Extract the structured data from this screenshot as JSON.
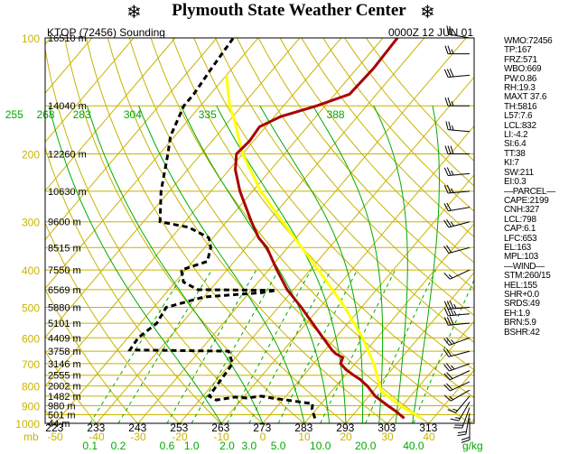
{
  "header": {
    "title": "Plymouth State Weather Center",
    "icon_left": "hurricane-icon",
    "icon_right": "hurricane-icon"
  },
  "sounding": {
    "station": "KTOP (72456) Sounding",
    "time": "0000Z 12 JUN 01"
  },
  "colors": {
    "background": "#ffffff",
    "isobars_isotherms": "#c8b400",
    "dry_adiabats": "#c8b400",
    "moist_adiabats": "#00aa00",
    "mixing_ratio": "#00aa00",
    "temperature": "#aa0000",
    "dewpoint": "#000000",
    "parcel": "#ffff00",
    "pressure_labels": "#c8b400",
    "theta_labels": "#00aa00",
    "mixing_ratio_labels": "#00aa00"
  },
  "indices": [
    "WMO:72456",
    "TP:167",
    "FRZ:571",
    "WBO:669",
    "PW:0.86",
    "RH:19.3",
    "MAXT 37.6",
    "TH:5816",
    "L57:7.6",
    "LCL:832",
    "LI:-4.2",
    "SI:6.4",
    "TT:38",
    "KI:7",
    "SW:211",
    "EI:0.3",
    "—PARCEL—",
    "CAPE:2199",
    "CNH:327",
    "LCL:798",
    "CAP:6.1",
    "LFC:653",
    "EL:163",
    "MPL:103",
    "—WIND—",
    "STM:260/15",
    "HEL:155",
    "SHR+0.0",
    "SRDS:49",
    "EH:1.9",
    "BRN:5.9",
    "BSHR:42"
  ],
  "chart_data": {
    "type": "skew-t",
    "title": "KTOP (72456) Sounding",
    "subtitle": "0000Z 12 JUN 01",
    "pressure_axis": {
      "unit": "mb",
      "range": [
        1000,
        100
      ],
      "scale": "log",
      "ticks": [
        {
          "value": 100,
          "label": "100"
        },
        {
          "value": 200,
          "label": "200"
        },
        {
          "value": 300,
          "label": "300"
        },
        {
          "value": 400,
          "label": "400"
        },
        {
          "value": 500,
          "label": "500"
        },
        {
          "value": 600,
          "label": "600"
        },
        {
          "value": 700,
          "label": "700"
        },
        {
          "value": 800,
          "label": "800"
        },
        {
          "value": 900,
          "label": "900"
        },
        {
          "value": 1000,
          "label": "1000"
        }
      ],
      "unit_label": "mb"
    },
    "height_labels": [
      {
        "p": 100,
        "label": "16510 m"
      },
      {
        "p": 150,
        "label": "14040 m"
      },
      {
        "p": 200,
        "label": "12260 m"
      },
      {
        "p": 250,
        "label": "10630 m"
      },
      {
        "p": 300,
        "label": "9600 m"
      },
      {
        "p": 350,
        "label": "8515 m"
      },
      {
        "p": 400,
        "label": "7550 m"
      },
      {
        "p": 450,
        "label": "6569 m"
      },
      {
        "p": 500,
        "label": "5880 m"
      },
      {
        "p": 550,
        "label": "5101 m"
      },
      {
        "p": 600,
        "label": "4409 m"
      },
      {
        "p": 650,
        "label": "3758 m"
      },
      {
        "p": 700,
        "label": "3146 m"
      },
      {
        "p": 750,
        "label": "2555 m"
      },
      {
        "p": 800,
        "label": "2002 m"
      },
      {
        "p": 850,
        "label": "1482 m"
      },
      {
        "p": 900,
        "label": "980 m"
      },
      {
        "p": 950,
        "label": "501 m"
      },
      {
        "p": 1000,
        "label": "44 m"
      }
    ],
    "temperature_axis": {
      "unit": "C",
      "ticks": [
        {
          "value": -50,
          "label": "-50"
        },
        {
          "value": -40,
          "label": "-40"
        },
        {
          "value": -30,
          "label": "-30"
        },
        {
          "value": -20,
          "label": "-20"
        },
        {
          "value": -10,
          "label": "-10"
        },
        {
          "value": 0,
          "label": "0"
        },
        {
          "value": 10,
          "label": "10"
        },
        {
          "value": 20,
          "label": "20"
        },
        {
          "value": 30,
          "label": "30"
        },
        {
          "value": 40,
          "label": "40"
        }
      ]
    },
    "theta_bottom_labels": [
      "223",
      "233",
      "243",
      "253",
      "263",
      "273",
      "283",
      "293",
      "303",
      "313"
    ],
    "theta_labels_150mb": [
      "255",
      "268",
      "283",
      "304",
      "335",
      "388"
    ],
    "mixing_ratio_labels": [
      "0.1",
      "0.2",
      "0.6",
      "1.0",
      "2.0",
      "3.0",
      "5.0",
      "10.0",
      "20.0",
      "40.0"
    ],
    "mixing_ratio_unit": "g/kg",
    "series": [
      {
        "name": "temperature",
        "points": [
          {
            "p": 970,
            "t": 33.0
          },
          {
            "p": 930,
            "t": 29.5
          },
          {
            "p": 900,
            "t": 26.5
          },
          {
            "p": 870,
            "t": 23.5
          },
          {
            "p": 850,
            "t": 21.5
          },
          {
            "p": 800,
            "t": 17.5
          },
          {
            "p": 770,
            "t": 14.5
          },
          {
            "p": 750,
            "t": 12.0
          },
          {
            "p": 725,
            "t": 9.0
          },
          {
            "p": 700,
            "t": 6.5
          },
          {
            "p": 675,
            "t": 5.8
          },
          {
            "p": 660,
            "t": 3.3
          },
          {
            "p": 645,
            "t": 1.6
          },
          {
            "p": 600,
            "t": -3.0
          },
          {
            "p": 550,
            "t": -8.5
          },
          {
            "p": 500,
            "t": -14.5
          },
          {
            "p": 450,
            "t": -21.5
          },
          {
            "p": 400,
            "t": -28.0
          },
          {
            "p": 350,
            "t": -35.0
          },
          {
            "p": 330,
            "t": -39.0
          },
          {
            "p": 300,
            "t": -44.0
          },
          {
            "p": 250,
            "t": -53.0
          },
          {
            "p": 220,
            "t": -58.5
          },
          {
            "p": 200,
            "t": -61.5
          },
          {
            "p": 185,
            "t": -61.0
          },
          {
            "p": 170,
            "t": -61.5
          },
          {
            "p": 160,
            "t": -58.5
          },
          {
            "p": 150,
            "t": -52.0
          },
          {
            "p": 140,
            "t": -46.5
          },
          {
            "p": 120,
            "t": -46.0
          },
          {
            "p": 100,
            "t": -46.5
          }
        ]
      },
      {
        "name": "dewpoint",
        "points": [
          {
            "p": 970,
            "t": 11.5
          },
          {
            "p": 920,
            "t": 9.0
          },
          {
            "p": 890,
            "t": 8.0
          },
          {
            "p": 870,
            "t": 1.0
          },
          {
            "p": 860,
            "t": -3.0
          },
          {
            "p": 850,
            "t": -6.0
          },
          {
            "p": 860,
            "t": -9.0
          },
          {
            "p": 855,
            "t": -12.0
          },
          {
            "p": 870,
            "t": -16.0
          },
          {
            "p": 850,
            "t": -18.5
          },
          {
            "p": 700,
            "t": -19.5
          },
          {
            "p": 650,
            "t": -23.0
          },
          {
            "p": 645,
            "t": -47.0
          },
          {
            "p": 600,
            "t": -47.5
          },
          {
            "p": 550,
            "t": -46.0
          },
          {
            "p": 500,
            "t": -47.0
          },
          {
            "p": 470,
            "t": -40.0
          },
          {
            "p": 458,
            "t": -27.0
          },
          {
            "p": 452,
            "t": -24.0
          },
          {
            "p": 450,
            "t": -43.0
          },
          {
            "p": 430,
            "t": -48.0
          },
          {
            "p": 400,
            "t": -51.0
          },
          {
            "p": 380,
            "t": -46.5
          },
          {
            "p": 350,
            "t": -48.5
          },
          {
            "p": 330,
            "t": -51.0
          },
          {
            "p": 310,
            "t": -58.0
          },
          {
            "p": 300,
            "t": -66.0
          },
          {
            "p": 250,
            "t": -72.0
          },
          {
            "p": 200,
            "t": -78.0
          },
          {
            "p": 180,
            "t": -81.0
          },
          {
            "p": 150,
            "t": -84.0
          },
          {
            "p": 140,
            "t": -84.0
          },
          {
            "p": 120,
            "t": -85.0
          },
          {
            "p": 100,
            "t": -86.0
          }
        ]
      },
      {
        "name": "parcel",
        "points": [
          {
            "p": 970,
            "t": 37.0
          },
          {
            "p": 940,
            "t": 34.0
          },
          {
            "p": 900,
            "t": 29.5
          },
          {
            "p": 850,
            "t": 24.5
          },
          {
            "p": 825,
            "t": 22.0
          },
          {
            "p": 800,
            "t": 20.5
          },
          {
            "p": 700,
            "t": 14.5
          },
          {
            "p": 600,
            "t": 6.5
          },
          {
            "p": 500,
            "t": -4.0
          },
          {
            "p": 400,
            "t": -18.0
          },
          {
            "p": 300,
            "t": -36.5
          },
          {
            "p": 250,
            "t": -48.0
          },
          {
            "p": 200,
            "t": -60.0
          },
          {
            "p": 163,
            "t": -69.0
          },
          {
            "p": 150,
            "t": -73.0
          },
          {
            "p": 125,
            "t": -80.0
          }
        ]
      }
    ],
    "wind_barbs": [
      {
        "p": 100,
        "dir": 280,
        "spd": 20
      },
      {
        "p": 110,
        "dir": 270,
        "spd": 25
      },
      {
        "p": 125,
        "dir": 265,
        "spd": 30
      },
      {
        "p": 150,
        "dir": 270,
        "spd": 25
      },
      {
        "p": 175,
        "dir": 275,
        "spd": 25
      },
      {
        "p": 200,
        "dir": 270,
        "spd": 30
      },
      {
        "p": 225,
        "dir": 265,
        "spd": 25
      },
      {
        "p": 250,
        "dir": 265,
        "spd": 25
      },
      {
        "p": 275,
        "dir": 260,
        "spd": 20
      },
      {
        "p": 300,
        "dir": 255,
        "spd": 25
      },
      {
        "p": 350,
        "dir": 255,
        "spd": 20
      },
      {
        "p": 400,
        "dir": 245,
        "spd": 15
      },
      {
        "p": 500,
        "dir": 265,
        "spd": 35
      },
      {
        "p": 520,
        "dir": 265,
        "spd": 35
      },
      {
        "p": 550,
        "dir": 265,
        "spd": 30
      },
      {
        "p": 600,
        "dir": 250,
        "spd": 25
      },
      {
        "p": 650,
        "dir": 255,
        "spd": 20
      },
      {
        "p": 700,
        "dir": 250,
        "spd": 25
      },
      {
        "p": 730,
        "dir": 245,
        "spd": 20
      },
      {
        "p": 780,
        "dir": 245,
        "spd": 20
      },
      {
        "p": 820,
        "dir": 240,
        "spd": 15
      },
      {
        "p": 850,
        "dir": 220,
        "spd": 15
      },
      {
        "p": 880,
        "dir": 210,
        "spd": 15
      },
      {
        "p": 910,
        "dir": 200,
        "spd": 20
      },
      {
        "p": 940,
        "dir": 190,
        "spd": 20
      },
      {
        "p": 970,
        "dir": 180,
        "spd": 20
      }
    ]
  }
}
